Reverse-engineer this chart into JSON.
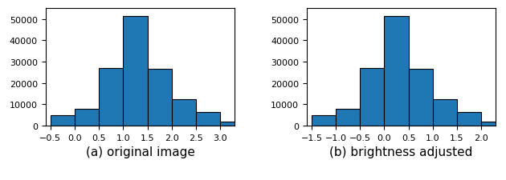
{
  "left_bars": {
    "bin_left_edges": [
      -0.5,
      0.0,
      0.5,
      1.0,
      1.5,
      2.0,
      2.5,
      3.0
    ],
    "heights": [
      5000,
      8000,
      27000,
      51500,
      26500,
      12500,
      6500,
      2000
    ],
    "color": "#1f77b4",
    "edgecolor": "black",
    "title": "(a) original image",
    "xlim": [
      -0.6,
      3.3
    ],
    "ylim": [
      0,
      55000
    ],
    "yticks": [
      0,
      10000,
      20000,
      30000,
      40000,
      50000
    ],
    "xticks": [
      -0.5,
      0.0,
      0.5,
      1.0,
      1.5,
      2.0,
      2.5,
      3.0
    ]
  },
  "right_bars": {
    "bin_left_edges": [
      -1.5,
      -1.0,
      -0.5,
      0.0,
      0.5,
      1.0,
      1.5,
      2.0
    ],
    "heights": [
      5000,
      8000,
      27000,
      51500,
      26500,
      12500,
      6500,
      2000
    ],
    "color": "#1f77b4",
    "edgecolor": "black",
    "title": "(b) brightness adjusted",
    "xlim": [
      -1.6,
      2.3
    ],
    "ylim": [
      0,
      55000
    ],
    "yticks": [
      0,
      10000,
      20000,
      30000,
      40000,
      50000
    ],
    "xticks": [
      -1.5,
      -1.0,
      -0.5,
      0.0,
      0.5,
      1.0,
      1.5,
      2.0
    ]
  },
  "bar_width": 0.5,
  "title_fontsize": 11,
  "tick_fontsize": 8
}
